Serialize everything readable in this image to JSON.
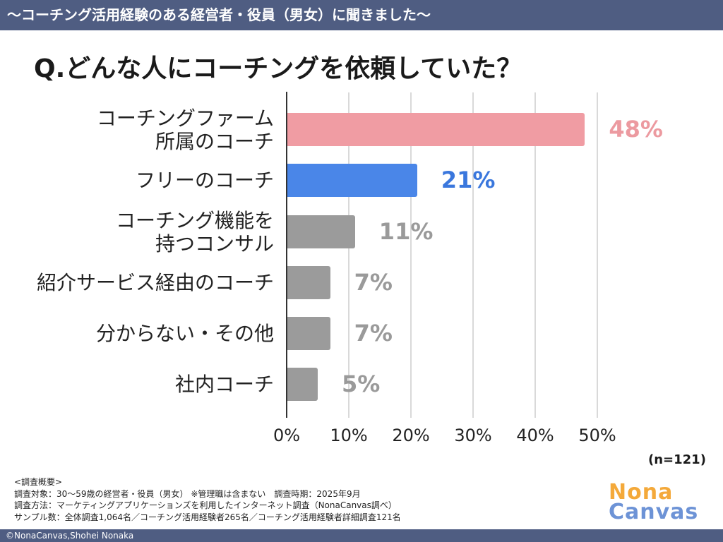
{
  "header": {
    "banner": "〜コーチング活用経験のある経営者・役員（男女）に聞きました〜"
  },
  "chart_data": {
    "type": "bar",
    "title": "Q.どんな人にコーチングを依頼していた？",
    "categories": [
      "コーチングファーム\n所属のコーチ",
      "フリーのコーチ",
      "コーチング機能を\n持つコンサル",
      "紹介サービス経由のコーチ",
      "分からない・その他",
      "社内コーチ"
    ],
    "values": [
      48,
      21,
      11,
      7,
      7,
      5
    ],
    "value_labels": [
      "48%",
      "21%",
      "11%",
      "7%",
      "7%",
      "5%"
    ],
    "bar_colors": [
      "#f09ca3",
      "#4a86e8",
      "#9b9b9b",
      "#9b9b9b",
      "#9b9b9b",
      "#9b9b9b"
    ],
    "label_colors": [
      "#ec9aa0",
      "#3a77dd",
      "#9a9a9a",
      "#9a9a9a",
      "#9a9a9a",
      "#9a9a9a"
    ],
    "xlim": [
      0,
      50
    ],
    "xticks": [
      0,
      10,
      20,
      30,
      40,
      50
    ],
    "xtick_labels": [
      "0%",
      "10%",
      "20%",
      "30%",
      "40%",
      "50%"
    ],
    "xlabel": "",
    "ylabel": "",
    "grid": true
  },
  "sample_size": "(n=121)",
  "survey": {
    "heading": "<調査概要>",
    "target": "調査対象：30〜59歳の経営者・役員（男女） ※管理職は含まない　調査時期：2025年9月",
    "method": "調査方法：マーケティングアプリケーションズを利用したインターネット調査（NonaCanvas調べ）",
    "sample": "サンプル数：全体調査1,064名／コーチング活用経験者265名／コーチング活用経験者詳細調査121名"
  },
  "logo": {
    "line1": "Nona",
    "line2": "Canvas"
  },
  "footer": {
    "copyright": "©NonaCanvas,Shohei Nonaka"
  }
}
